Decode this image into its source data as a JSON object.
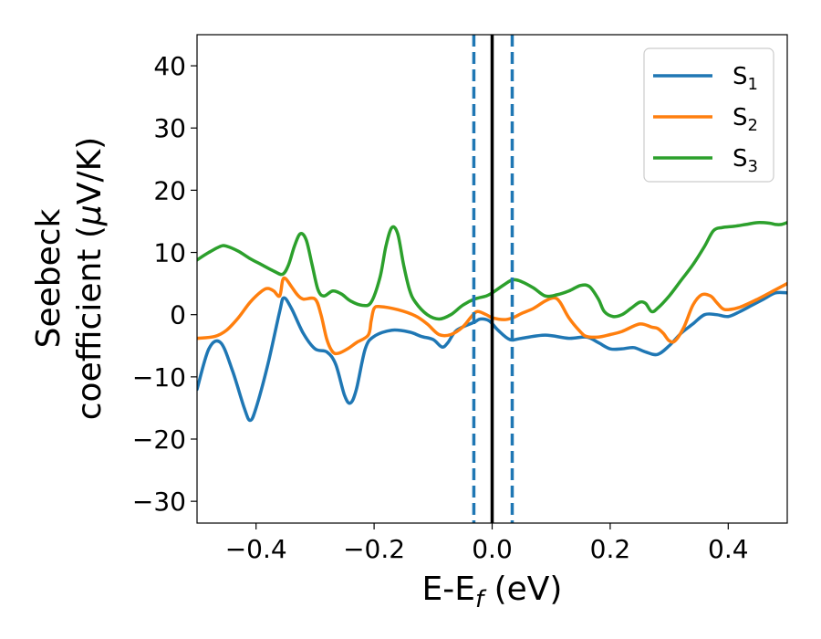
{
  "chart_data": {
    "type": "line",
    "xlabel": {
      "main": "E-E",
      "sub": "f",
      "tail": " (eV)"
    },
    "ylabel": {
      "line1": "Seebeck",
      "line2_main": "coefficient  (",
      "line2_greek": "μ",
      "line2_tail": "V/K)"
    },
    "xlim": [
      -0.5,
      0.5
    ],
    "ylim": [
      -33.5,
      45
    ],
    "xticks": [
      -0.4,
      -0.2,
      0.0,
      0.2,
      0.4
    ],
    "xtick_labels": [
      "−0.4",
      "−0.2",
      "0.0",
      "0.2",
      "0.4"
    ],
    "yticks": [
      -30,
      -20,
      -10,
      0,
      10,
      20,
      30,
      40
    ],
    "ytick_labels": [
      "−30",
      "−20",
      "−10",
      "0",
      "10",
      "20",
      "30",
      "40"
    ],
    "grid": false,
    "legend_position": "top-right",
    "vlines": [
      {
        "x": 0.0,
        "color": "#000000",
        "style": "solid"
      },
      {
        "x": -0.031,
        "color": "#1f77b4",
        "style": "dashed"
      },
      {
        "x": 0.034,
        "color": "#1f77b4",
        "style": "dashed"
      }
    ],
    "series": [
      {
        "name": "S",
        "sub": "1",
        "color": "#1f77b4",
        "points": [
          [
            -0.5,
            -12
          ],
          [
            -0.48,
            -5.5
          ],
          [
            -0.46,
            -4.5
          ],
          [
            -0.44,
            -9
          ],
          [
            -0.42,
            -15
          ],
          [
            -0.41,
            -17
          ],
          [
            -0.4,
            -15
          ],
          [
            -0.38,
            -8
          ],
          [
            -0.36,
            0.5
          ],
          [
            -0.353,
            2.7
          ],
          [
            -0.34,
            1
          ],
          [
            -0.32,
            -3
          ],
          [
            -0.3,
            -5.5
          ],
          [
            -0.28,
            -6
          ],
          [
            -0.265,
            -8
          ],
          [
            -0.25,
            -13
          ],
          [
            -0.24,
            -14.2
          ],
          [
            -0.23,
            -12
          ],
          [
            -0.215,
            -5.5
          ],
          [
            -0.2,
            -3.5
          ],
          [
            -0.17,
            -2.5
          ],
          [
            -0.14,
            -2.8
          ],
          [
            -0.12,
            -3.5
          ],
          [
            -0.1,
            -4
          ],
          [
            -0.085,
            -5.2
          ],
          [
            -0.075,
            -4.5
          ],
          [
            -0.06,
            -2.5
          ],
          [
            -0.03,
            -1.2
          ],
          [
            -0.02,
            -0.7
          ],
          [
            -0.005,
            -1
          ],
          [
            0.01,
            -2.5
          ],
          [
            0.03,
            -4
          ],
          [
            0.05,
            -3.8
          ],
          [
            0.09,
            -3.3
          ],
          [
            0.13,
            -3.8
          ],
          [
            0.16,
            -3.6
          ],
          [
            0.18,
            -4.5
          ],
          [
            0.2,
            -5.5
          ],
          [
            0.22,
            -5.5
          ],
          [
            0.24,
            -5.3
          ],
          [
            0.26,
            -6
          ],
          [
            0.28,
            -6.4
          ],
          [
            0.3,
            -5
          ],
          [
            0.32,
            -3
          ],
          [
            0.34,
            -1.5
          ],
          [
            0.36,
            0
          ],
          [
            0.38,
            0
          ],
          [
            0.4,
            -0.3
          ],
          [
            0.42,
            0.5
          ],
          [
            0.44,
            1.5
          ],
          [
            0.46,
            2.5
          ],
          [
            0.48,
            3.5
          ],
          [
            0.5,
            3.5
          ]
        ]
      },
      {
        "name": "S",
        "sub": "2",
        "color": "#ff7f0e",
        "points": [
          [
            -0.5,
            -3.8
          ],
          [
            -0.47,
            -3.5
          ],
          [
            -0.45,
            -2.5
          ],
          [
            -0.43,
            -0.5
          ],
          [
            -0.41,
            2
          ],
          [
            -0.39,
            3.8
          ],
          [
            -0.38,
            4.2
          ],
          [
            -0.37,
            3.8
          ],
          [
            -0.36,
            3
          ],
          [
            -0.355,
            5.5
          ],
          [
            -0.35,
            5.8
          ],
          [
            -0.34,
            4.5
          ],
          [
            -0.33,
            3.2
          ],
          [
            -0.32,
            2.5
          ],
          [
            -0.3,
            2.5
          ],
          [
            -0.29,
            0
          ],
          [
            -0.28,
            -4
          ],
          [
            -0.27,
            -6
          ],
          [
            -0.26,
            -6.2
          ],
          [
            -0.245,
            -5.5
          ],
          [
            -0.23,
            -4.5
          ],
          [
            -0.21,
            -3.3
          ],
          [
            -0.205,
            -1
          ],
          [
            -0.2,
            1
          ],
          [
            -0.19,
            1.3
          ],
          [
            -0.16,
            0.8
          ],
          [
            -0.13,
            -0.2
          ],
          [
            -0.11,
            -1.5
          ],
          [
            -0.09,
            -3.2
          ],
          [
            -0.07,
            -3.2
          ],
          [
            -0.05,
            -2
          ],
          [
            -0.035,
            -0.3
          ],
          [
            -0.025,
            0.5
          ],
          [
            -0.01,
            0
          ],
          [
            0.0,
            -0.5
          ],
          [
            0.02,
            -0.8
          ],
          [
            0.035,
            -0.5
          ],
          [
            0.05,
            0.2
          ],
          [
            0.07,
            1
          ],
          [
            0.09,
            2.2
          ],
          [
            0.105,
            2.7
          ],
          [
            0.115,
            2
          ],
          [
            0.13,
            -0.5
          ],
          [
            0.15,
            -2.8
          ],
          [
            0.16,
            -3.5
          ],
          [
            0.18,
            -3.6
          ],
          [
            0.2,
            -3.2
          ],
          [
            0.22,
            -2.7
          ],
          [
            0.25,
            -1.5
          ],
          [
            0.27,
            -2
          ],
          [
            0.28,
            -2.2
          ],
          [
            0.29,
            -3
          ],
          [
            0.3,
            -4.2
          ],
          [
            0.31,
            -4.2
          ],
          [
            0.325,
            -2
          ],
          [
            0.34,
            1.5
          ],
          [
            0.355,
            3.2
          ],
          [
            0.37,
            3
          ],
          [
            0.38,
            2
          ],
          [
            0.39,
            1
          ],
          [
            0.4,
            0.8
          ],
          [
            0.42,
            1.2
          ],
          [
            0.45,
            2.5
          ],
          [
            0.48,
            4
          ],
          [
            0.5,
            5
          ]
        ]
      },
      {
        "name": "S",
        "sub": "3",
        "color": "#2ca02c",
        "points": [
          [
            -0.5,
            8.8
          ],
          [
            -0.48,
            10
          ],
          [
            -0.46,
            11
          ],
          [
            -0.45,
            11
          ],
          [
            -0.43,
            10.2
          ],
          [
            -0.41,
            9
          ],
          [
            -0.39,
            8
          ],
          [
            -0.37,
            7
          ],
          [
            -0.355,
            6.5
          ],
          [
            -0.345,
            8
          ],
          [
            -0.335,
            11
          ],
          [
            -0.325,
            13
          ],
          [
            -0.315,
            12
          ],
          [
            -0.305,
            8
          ],
          [
            -0.295,
            4
          ],
          [
            -0.285,
            3
          ],
          [
            -0.27,
            3.8
          ],
          [
            -0.255,
            3.3
          ],
          [
            -0.24,
            2.2
          ],
          [
            -0.22,
            1.5
          ],
          [
            -0.205,
            2
          ],
          [
            -0.19,
            6
          ],
          [
            -0.18,
            11
          ],
          [
            -0.17,
            14
          ],
          [
            -0.16,
            13
          ],
          [
            -0.15,
            8
          ],
          [
            -0.14,
            4
          ],
          [
            -0.13,
            2
          ],
          [
            -0.11,
            0
          ],
          [
            -0.09,
            -0.7
          ],
          [
            -0.07,
            0
          ],
          [
            -0.05,
            1.5
          ],
          [
            -0.03,
            2.5
          ],
          [
            -0.01,
            3
          ],
          [
            0.0,
            3.5
          ],
          [
            0.02,
            4.8
          ],
          [
            0.035,
            5.6
          ],
          [
            0.05,
            5.3
          ],
          [
            0.07,
            4.3
          ],
          [
            0.09,
            3
          ],
          [
            0.11,
            3.2
          ],
          [
            0.13,
            3.8
          ],
          [
            0.15,
            4.7
          ],
          [
            0.165,
            4.5
          ],
          [
            0.18,
            2.5
          ],
          [
            0.19,
            0.5
          ],
          [
            0.205,
            -0.3
          ],
          [
            0.22,
            0
          ],
          [
            0.235,
            1
          ],
          [
            0.25,
            2
          ],
          [
            0.26,
            1.8
          ],
          [
            0.27,
            0.5
          ],
          [
            0.28,
            1
          ],
          [
            0.3,
            3
          ],
          [
            0.32,
            5.5
          ],
          [
            0.34,
            8
          ],
          [
            0.36,
            11
          ],
          [
            0.375,
            13.5
          ],
          [
            0.39,
            14
          ],
          [
            0.41,
            14.2
          ],
          [
            0.43,
            14.5
          ],
          [
            0.45,
            14.8
          ],
          [
            0.47,
            14.7
          ],
          [
            0.48,
            14.5
          ],
          [
            0.49,
            14.5
          ],
          [
            0.5,
            14.8
          ]
        ]
      }
    ]
  }
}
